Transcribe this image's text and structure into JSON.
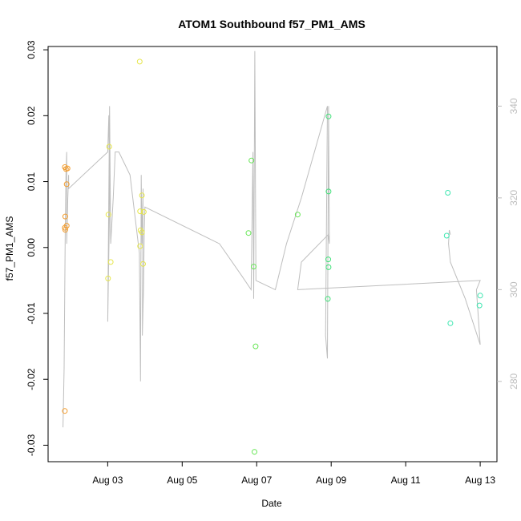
{
  "chart_data": {
    "type": "scatter",
    "title": "ATOM1 Southbound f57_PM1_AMS",
    "xlabel": "Date",
    "ylabel": "f57_PM1_AMS",
    "x_ticks": [
      "Aug 03",
      "Aug 05",
      "Aug 07",
      "Aug 09",
      "Aug 11",
      "Aug 13"
    ],
    "x_tick_days": [
      3,
      5,
      7,
      9,
      11,
      13
    ],
    "xlim": [
      1.4,
      13.45
    ],
    "ylim": [
      -0.0325,
      0.0305
    ],
    "y_ticks": [
      -0.03,
      -0.02,
      -0.01,
      0.0,
      0.01,
      0.02,
      0.03
    ],
    "y_tick_labels": [
      "-0.03",
      "-0.02",
      "-0.01",
      "0.00",
      "0.01",
      "0.02",
      "0.03"
    ],
    "right_axis": {
      "ylim": [
        262.5,
        353.0
      ],
      "ticks": [
        280,
        300,
        320,
        340
      ],
      "tick_labels": [
        "280",
        "300",
        "320",
        "340"
      ],
      "color": "#bdbdbd"
    },
    "line_color": "#bebebe",
    "series": [
      {
        "color": "#f39c2c",
        "points": [
          [
            1.85,
            0.0122
          ],
          [
            1.88,
            0.0119
          ],
          [
            1.92,
            0.012
          ],
          [
            1.9,
            0.0096
          ],
          [
            1.86,
            0.0047
          ],
          [
            1.9,
            0.0033
          ],
          [
            1.85,
            0.003
          ],
          [
            1.86,
            0.0027
          ],
          [
            1.85,
            -0.0248
          ]
        ]
      },
      {
        "color": "#e6e64a",
        "points": [
          [
            3.04,
            0.0153
          ],
          [
            3.02,
            0.005
          ],
          [
            3.08,
            -0.0022
          ],
          [
            3.01,
            -0.0047
          ],
          [
            3.86,
            0.0282
          ],
          [
            3.92,
            0.0079
          ],
          [
            3.87,
            0.0055
          ],
          [
            3.97,
            0.0054
          ],
          [
            3.88,
            0.0026
          ],
          [
            3.92,
            0.0023
          ],
          [
            3.87,
            0.0002
          ],
          [
            3.95,
            -0.0025
          ]
        ]
      },
      {
        "color": "#66e655",
        "points": [
          [
            6.86,
            0.0132
          ],
          [
            6.78,
            0.0022
          ],
          [
            6.92,
            -0.0029
          ],
          [
            6.97,
            -0.015
          ],
          [
            6.94,
            -0.031
          ],
          [
            8.1,
            0.005
          ]
        ]
      },
      {
        "color": "#3ee077",
        "points": [
          [
            8.93,
            0.0199
          ],
          [
            8.93,
            0.0085
          ],
          [
            8.92,
            -0.0018
          ],
          [
            8.93,
            -0.003
          ],
          [
            8.91,
            -0.0078
          ]
        ]
      },
      {
        "color": "#3de6b0",
        "points": [
          [
            12.13,
            0.0083
          ],
          [
            12.1,
            0.0018
          ],
          [
            12.2,
            -0.0115
          ],
          [
            13.0,
            -0.0073
          ],
          [
            12.98,
            -0.0088
          ]
        ]
      }
    ],
    "direction_line": [
      [
        1.8,
        270
      ],
      [
        1.83,
        283
      ],
      [
        1.86,
        313
      ],
      [
        1.88,
        325
      ],
      [
        1.9,
        330
      ],
      [
        1.9,
        310
      ],
      [
        1.93,
        320
      ],
      [
        1.95,
        325
      ],
      [
        1.95,
        322
      ],
      [
        3.0,
        330
      ],
      [
        3.03,
        338
      ],
      [
        3.05,
        318
      ],
      [
        3.0,
        293
      ],
      [
        3.05,
        340
      ],
      [
        3.08,
        310
      ],
      [
        3.15,
        320
      ],
      [
        3.2,
        330
      ],
      [
        3.3,
        330
      ],
      [
        3.6,
        325
      ],
      [
        3.85,
        308
      ],
      [
        3.88,
        280
      ],
      [
        3.9,
        325
      ],
      [
        3.92,
        310
      ],
      [
        3.95,
        322
      ],
      [
        3.93,
        290
      ],
      [
        3.96,
        300
      ],
      [
        3.98,
        312
      ],
      [
        4.0,
        318
      ],
      [
        6.0,
        310
      ],
      [
        6.6,
        303
      ],
      [
        6.85,
        300
      ],
      [
        6.9,
        330
      ],
      [
        6.92,
        298
      ],
      [
        6.95,
        352
      ],
      [
        6.98,
        302
      ],
      [
        7.5,
        300
      ],
      [
        7.8,
        310
      ],
      [
        8.2,
        320
      ],
      [
        8.9,
        340
      ],
      [
        8.85,
        290
      ],
      [
        8.9,
        285
      ],
      [
        8.93,
        340
      ],
      [
        8.95,
        310
      ],
      [
        8.92,
        312
      ],
      [
        8.2,
        306
      ],
      [
        8.1,
        300
      ],
      [
        13.0,
        302
      ],
      [
        12.9,
        300
      ],
      [
        13.0,
        288
      ],
      [
        12.6,
        298
      ],
      [
        12.2,
        306
      ],
      [
        12.15,
        310
      ],
      [
        12.17,
        313
      ],
      [
        12.2,
        312
      ]
    ]
  }
}
